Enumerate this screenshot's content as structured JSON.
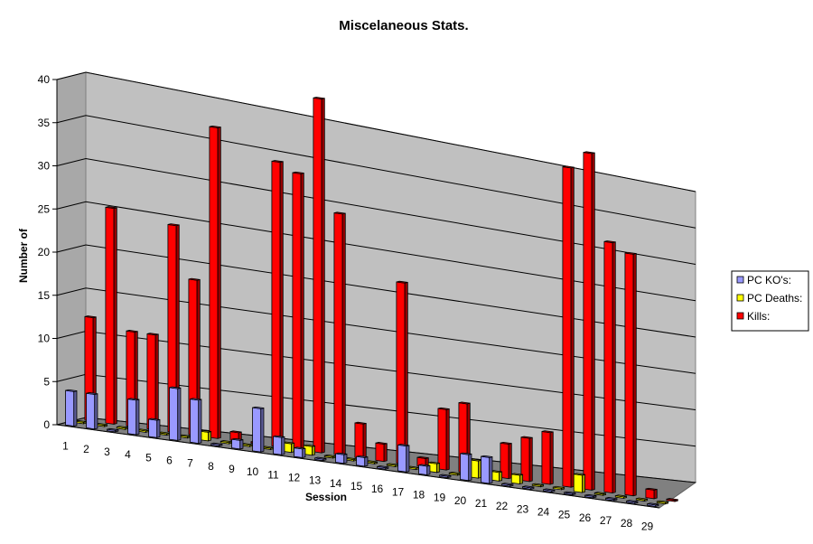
{
  "chart_data": {
    "type": "bar",
    "title": "Miscelaneous Stats.",
    "xlabel": "Session",
    "ylabel": "Number of",
    "ylim": [
      0,
      40
    ],
    "yticks": [
      0,
      5,
      10,
      15,
      20,
      25,
      30,
      35,
      40
    ],
    "grid": true,
    "legend_position": "right",
    "categories": [
      "1",
      "2",
      "3",
      "4",
      "5",
      "6",
      "7",
      "8",
      "9",
      "10",
      "11",
      "12",
      "13",
      "14",
      "15",
      "16",
      "17",
      "18",
      "19",
      "20",
      "21",
      "22",
      "23",
      "24",
      "25",
      "26",
      "27",
      "28",
      "29"
    ],
    "series": [
      {
        "name": "PC KO's:",
        "color": "#9999ff",
        "values": [
          4,
          4,
          0,
          4,
          2,
          6,
          5,
          0,
          1,
          5,
          2,
          1,
          0,
          1,
          1,
          0,
          3,
          1,
          0,
          3,
          3,
          0,
          0,
          0,
          0,
          0,
          0,
          0,
          0
        ]
      },
      {
        "name": "PC Deaths:",
        "color": "#ffff00",
        "values": [
          0,
          0,
          0,
          0,
          0,
          0,
          1,
          0,
          0,
          0,
          1,
          1,
          0,
          0,
          0,
          0,
          0,
          1,
          0,
          2,
          1,
          1,
          0,
          0,
          2,
          0,
          0,
          0,
          0
        ]
      },
      {
        "name": "Kills:",
        "color": "#ff0000",
        "values": [
          12,
          25,
          11,
          11,
          24,
          18,
          36,
          1,
          0,
          33,
          32,
          41,
          28,
          4,
          2,
          21,
          1,
          7,
          8,
          1,
          4,
          5,
          6,
          37,
          39,
          29,
          28,
          1,
          0
        ]
      }
    ]
  }
}
